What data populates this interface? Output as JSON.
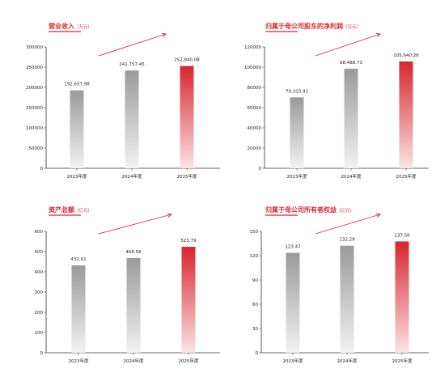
{
  "colors": {
    "title_red": "#d7282f",
    "bar_gray_top": "#9a9a9a",
    "bar_gray_bottom": "#f2f2f2",
    "bar_red_top": "#d8262d",
    "bar_red_bottom": "#fbe3e5",
    "axis": "#333333",
    "text": "#222222"
  },
  "chart_data": [
    {
      "type": "bar",
      "title": "营业收入",
      "unit": "（万元）",
      "categories": [
        "2023年度",
        "2024年度",
        "2025年度"
      ],
      "values": [
        192657.98,
        241757.45,
        252840.08
      ],
      "value_labels": [
        "192,657.98",
        "241,757.45",
        "252,840.08"
      ],
      "y_ticks": [
        "0",
        "50000",
        "100000",
        "150000",
        "200000",
        "250000",
        "300000"
      ],
      "ylim": [
        0,
        300000
      ],
      "highlight_index": 2,
      "grid": false,
      "legend": "none"
    },
    {
      "type": "bar",
      "title": "归属于母公司股东的净利润",
      "unit": "（万元）",
      "categories": [
        "2023年度",
        "2024年度",
        "2025年度"
      ],
      "values": [
        70103.91,
        98488.73,
        105640.26
      ],
      "value_labels": [
        "70,103.91",
        "98,488.73",
        "105,640.26"
      ],
      "y_ticks": [
        "0",
        "20000",
        "40000",
        "60000",
        "80000",
        "100000",
        "120000"
      ],
      "ylim": [
        0,
        120000
      ],
      "highlight_index": 2,
      "grid": false,
      "legend": "none"
    },
    {
      "type": "bar",
      "title": "资产总额",
      "unit": "（亿元）",
      "categories": [
        "2023年度",
        "2024年度",
        "2025年度"
      ],
      "values": [
        432.01,
        468.56,
        523.79
      ],
      "value_labels": [
        "432.01",
        "468.56",
        "523.79"
      ],
      "y_ticks": [
        "0",
        "100",
        "200",
        "300",
        "400",
        "500",
        "600"
      ],
      "ylim": [
        0,
        600
      ],
      "highlight_index": 2,
      "grid": false,
      "legend": "none"
    },
    {
      "type": "bar",
      "title": "归属于母公司所有者权益",
      "unit": "（亿元）",
      "categories": [
        "2023年度",
        "2024年度",
        "2025年度"
      ],
      "values": [
        123.47,
        132.29,
        137.56
      ],
      "value_labels": [
        "123.47",
        "132.29",
        "137.56"
      ],
      "y_ticks": [
        "0",
        "30",
        "60",
        "90",
        "120",
        "150"
      ],
      "ylim": [
        0,
        150
      ],
      "highlight_index": 2,
      "grid": false,
      "legend": "none"
    }
  ]
}
